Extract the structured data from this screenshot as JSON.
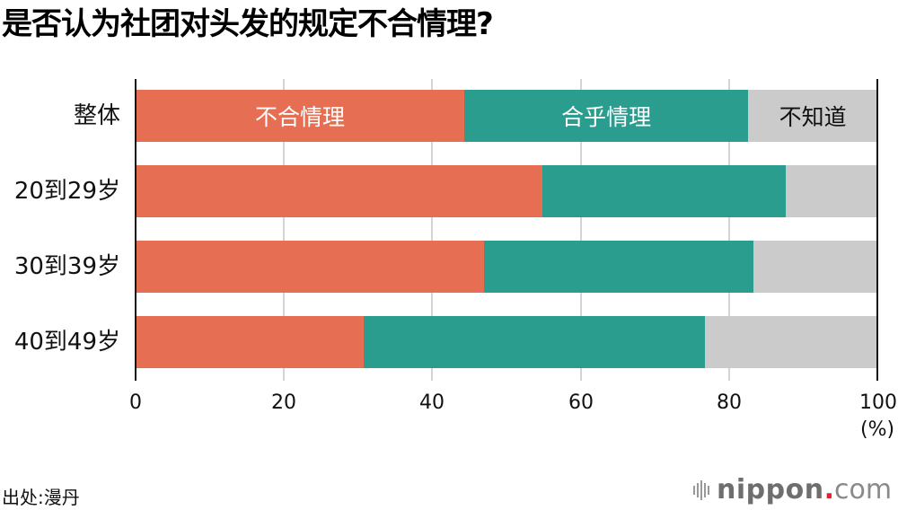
{
  "title": "是否认为社团对头发的规定不合情理?",
  "chart_data": {
    "type": "bar",
    "orientation": "horizontal",
    "stacked": true,
    "title": "是否认为社团对头发的规定不合情理?",
    "categories": [
      "整体",
      "20到29岁",
      "30到39岁",
      "40到49岁"
    ],
    "series": [
      {
        "name": "不合情理",
        "color": "#e66f53",
        "values": [
          44.3,
          54.9,
          47.0,
          30.8
        ]
      },
      {
        "name": "合乎情理",
        "color": "#2a9d8f",
        "values": [
          38.3,
          32.8,
          36.3,
          45.9
        ]
      },
      {
        "name": "不知道",
        "color": "#cbcbcb",
        "values": [
          17.4,
          12.3,
          16.7,
          23.3
        ]
      }
    ],
    "xlabel": "(%)",
    "ylabel": "",
    "xlim": [
      0,
      100
    ],
    "xticks": [
      0,
      20,
      40,
      60,
      80,
      100
    ],
    "grid": true,
    "legend": "inline labels in first bar"
  },
  "axis": {
    "ticks": [
      "0",
      "20",
      "40",
      "60",
      "80",
      "100"
    ],
    "unit": "(%)"
  },
  "source": "出处:漫丹",
  "logo": {
    "name": "nippon",
    "dot": ".",
    "suffix": "com"
  }
}
